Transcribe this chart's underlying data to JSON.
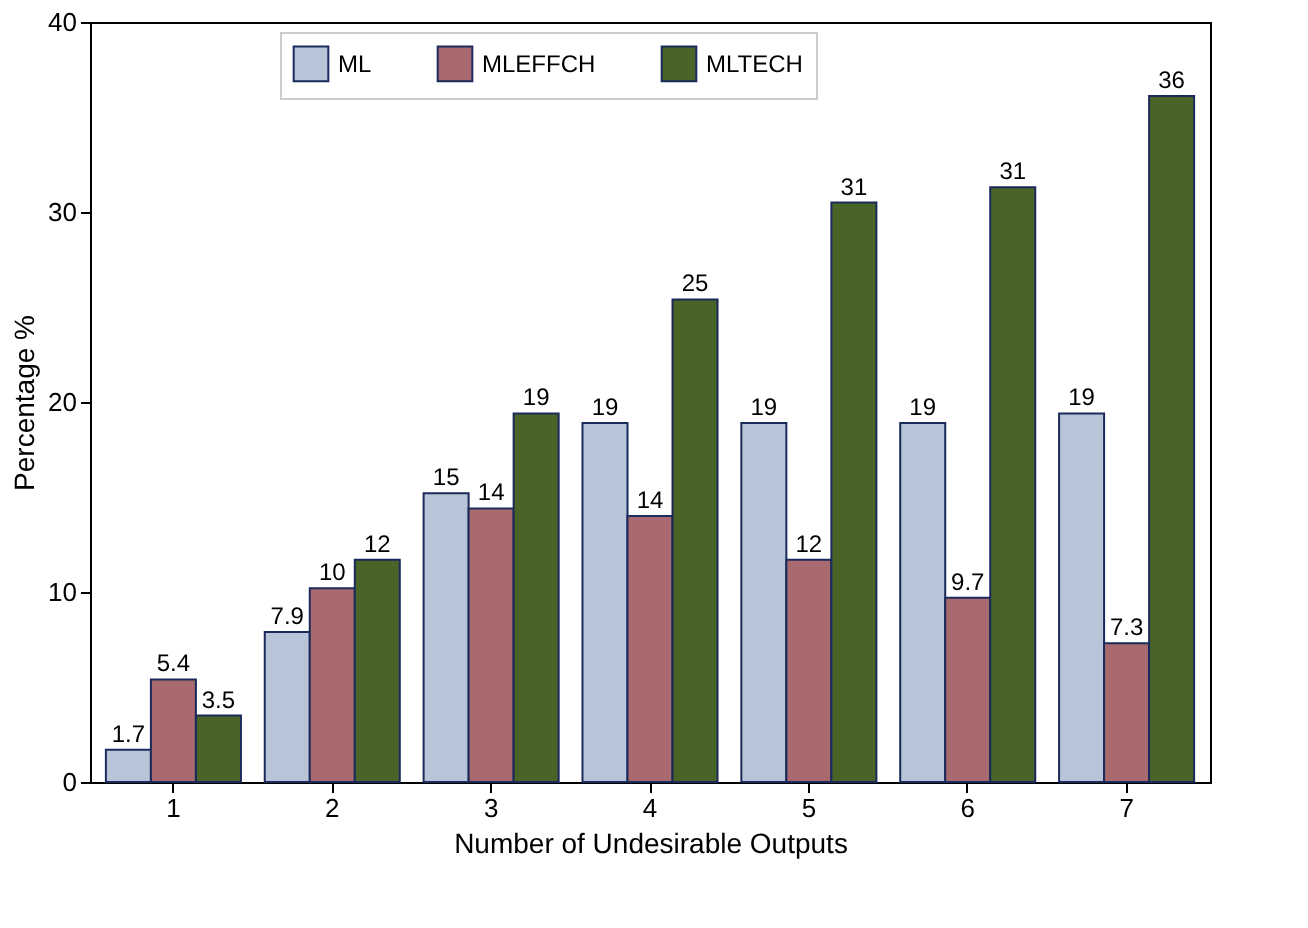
{
  "chart_data": {
    "type": "bar",
    "xlabel": "Number of Undesirable Outputs",
    "ylabel": "Percentage %",
    "categories": [
      "1",
      "2",
      "3",
      "4",
      "5",
      "6",
      "7"
    ],
    "series": [
      {
        "name": "ML",
        "color": "#b8c4d8",
        "values": [
          1.7,
          7.9,
          15.2,
          18.9,
          18.9,
          18.9,
          19.4
        ],
        "value_labels": [
          "1.7",
          "7.9",
          "15",
          "19",
          "19",
          "19",
          "19"
        ]
      },
      {
        "name": "MLEFFCH",
        "color": "#a86a6e",
        "values": [
          5.4,
          10.2,
          14.4,
          14.0,
          11.7,
          9.7,
          7.3
        ],
        "value_labels": [
          "5.4",
          "10",
          "14",
          "14",
          "12",
          "9.7",
          "7.3"
        ]
      },
      {
        "name": "MLTECH",
        "color": "#4a6428",
        "values": [
          3.5,
          11.7,
          19.4,
          25.4,
          30.5,
          31.3,
          36.1
        ],
        "value_labels": [
          "3.5",
          "12",
          "19",
          "25",
          "31",
          "31",
          "36"
        ]
      }
    ],
    "ylim": [
      0,
      40
    ],
    "yticks": [
      0,
      10,
      20,
      30,
      40
    ],
    "grid": false,
    "legend": "top"
  }
}
